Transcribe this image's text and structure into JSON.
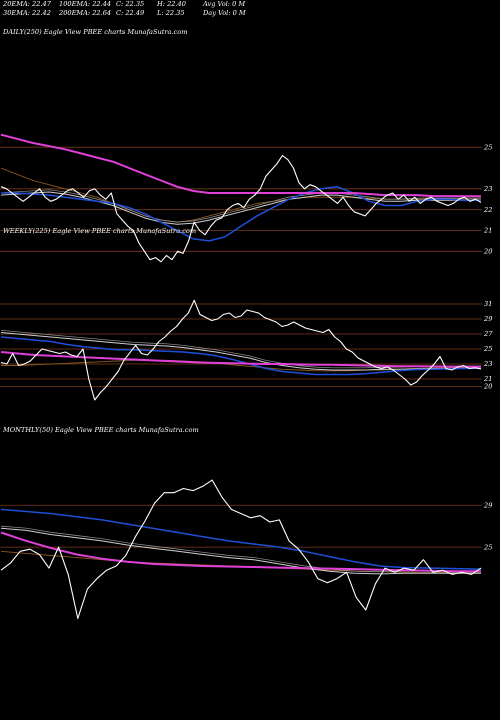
{
  "header": {
    "row1": [
      "20EMA: 22.47",
      "100EMA: 22.44",
      "C: 22.35",
      "H: 22.40",
      "Avg Vol: 0  M"
    ],
    "row2": [
      "30EMA: 22.42",
      "200EMA: 22.64",
      "C: 22.49",
      "L: 22.35",
      "Day Vol: 0  M"
    ]
  },
  "colors": {
    "background": "#000000",
    "price": "#ffffff",
    "ema_blue": "#1f4fd8",
    "ema_magenta": "#e040d8",
    "ema_brown": "#8b5a20",
    "ema_white_gray": "#cfcfcf",
    "gridline": "#7a3a1e"
  },
  "chart_data": [
    {
      "type": "line",
      "title": "DAILY(250) Eagle  View  PBEE charts MunafaSutra.com",
      "y_ticks": [
        25,
        23,
        22,
        21,
        20
      ],
      "ylim": [
        19.2,
        26.4
      ],
      "series": [
        {
          "key": "price",
          "values": [
            23.1,
            23.0,
            22.8,
            22.6,
            22.4,
            22.6,
            22.8,
            23.0,
            22.6,
            22.4,
            22.5,
            22.7,
            22.9,
            23.0,
            22.8,
            22.6,
            22.9,
            23.0,
            22.7,
            22.5,
            22.8,
            21.8,
            21.5,
            21.2,
            21.0,
            20.4,
            20.0,
            19.6,
            19.7,
            19.5,
            19.8,
            19.6,
            20.0,
            19.9,
            20.5,
            21.4,
            21.0,
            20.8,
            21.2,
            21.5,
            21.6,
            22.0,
            22.2,
            22.3,
            22.1,
            22.5,
            22.7,
            23.0,
            23.6,
            23.9,
            24.2,
            24.6,
            24.4,
            24.0,
            23.3,
            23.0,
            23.2,
            23.1,
            22.9,
            22.7,
            22.5,
            22.3,
            22.6,
            22.2,
            21.9,
            21.8,
            21.7,
            22.0,
            22.3,
            22.5,
            22.7,
            22.8,
            22.5,
            22.7,
            22.4,
            22.6,
            22.3,
            22.5,
            22.6,
            22.4,
            22.3,
            22.2,
            22.3,
            22.5,
            22.6,
            22.4,
            22.5,
            22.35
          ]
        },
        {
          "key": "ema_blue",
          "values": [
            22.8,
            22.8,
            22.75,
            22.7,
            22.6,
            22.5,
            22.4,
            22.3,
            22.1,
            21.8,
            21.4,
            21.0,
            20.6,
            20.5,
            20.7,
            21.2,
            21.7,
            22.1,
            22.5,
            22.8,
            23.0,
            23.1,
            22.8,
            22.4,
            22.2,
            22.2,
            22.4,
            22.5,
            22.5,
            22.45,
            22.45
          ]
        },
        {
          "key": "ema_white_gray",
          "values": [
            22.7,
            22.75,
            22.8,
            22.85,
            22.75,
            22.6,
            22.4,
            22.2,
            21.9,
            21.6,
            21.4,
            21.3,
            21.35,
            21.5,
            21.7,
            21.9,
            22.1,
            22.3,
            22.5,
            22.6,
            22.7,
            22.7,
            22.6,
            22.5,
            22.4,
            22.4,
            22.45,
            22.45,
            22.45,
            22.45,
            22.45
          ]
        },
        {
          "key": "ema_brown",
          "values": [
            24.0,
            23.7,
            23.4,
            23.2,
            23.0,
            22.8,
            22.6,
            22.3,
            22.0,
            21.7,
            21.5,
            21.4,
            21.5,
            21.7,
            21.9,
            22.1,
            22.3,
            22.4,
            22.5,
            22.6,
            22.6,
            22.6,
            22.6,
            22.55,
            22.5,
            22.5,
            22.5,
            22.5,
            22.5,
            22.5,
            22.5
          ]
        },
        {
          "key": "ema_magenta",
          "values": [
            25.6,
            25.4,
            25.2,
            25.05,
            24.9,
            24.7,
            24.5,
            24.3,
            24.0,
            23.7,
            23.4,
            23.1,
            22.9,
            22.8,
            22.8,
            22.8,
            22.8,
            22.8,
            22.8,
            22.8,
            22.8,
            22.8,
            22.8,
            22.75,
            22.7,
            22.7,
            22.7,
            22.65,
            22.65,
            22.64,
            22.64
          ]
        }
      ]
    },
    {
      "type": "line",
      "title": "WEEKLY(225) Eagle  View  PBEE charts MunafaSutra.com",
      "y_ticks": [
        31,
        29,
        27,
        25,
        23,
        21,
        20
      ],
      "ylim": [
        19,
        32.6
      ],
      "series": [
        {
          "key": "price",
          "values": [
            23.2,
            23.0,
            24.4,
            22.8,
            23.0,
            23.4,
            24.2,
            25.0,
            24.8,
            24.6,
            24.4,
            24.6,
            24.2,
            24.0,
            25.0,
            21.0,
            18.2,
            19.2,
            20.0,
            21.0,
            22.0,
            23.5,
            24.5,
            25.5,
            24.4,
            24.2,
            25.0,
            26.0,
            26.6,
            27.4,
            28.0,
            29.0,
            29.8,
            31.5,
            29.6,
            29.2,
            28.8,
            29.0,
            29.6,
            29.8,
            29.2,
            29.4,
            30.2,
            30.0,
            29.8,
            29.2,
            28.9,
            28.6,
            28.0,
            28.2,
            28.6,
            28.2,
            27.8,
            27.6,
            27.4,
            27.2,
            27.6,
            26.6,
            26.0,
            25.0,
            24.6,
            23.8,
            23.4,
            23.0,
            22.6,
            22.4,
            22.6,
            22.2,
            21.6,
            21.0,
            20.2,
            20.6,
            21.5,
            22.2,
            23.0,
            24.0,
            22.4,
            22.2,
            22.6,
            22.8,
            22.4,
            22.5,
            22.35
          ]
        },
        {
          "key": "ema_blue",
          "values": [
            26.6,
            26.4,
            26.2,
            26.0,
            25.6,
            25.3,
            25.1,
            24.9,
            24.9,
            24.8,
            24.7,
            24.6,
            24.4,
            24.1,
            23.6,
            23.0,
            22.4,
            22.0,
            21.8,
            21.6,
            21.6,
            21.6,
            21.7,
            21.9,
            22.1,
            22.25,
            22.3,
            22.35,
            22.4,
            22.42
          ]
        },
        {
          "key": "ema_white_gray",
          "values": [
            27.2,
            27.0,
            26.8,
            26.6,
            26.4,
            26.2,
            26.0,
            25.8,
            25.6,
            25.5,
            25.4,
            25.2,
            24.9,
            24.6,
            24.2,
            23.8,
            23.2,
            22.8,
            22.5,
            22.3,
            22.2,
            22.2,
            22.2,
            22.3,
            22.3,
            22.35,
            22.4,
            22.4,
            22.42,
            22.44
          ]
        },
        {
          "key": "ema_brown",
          "values": [
            22.8,
            22.8,
            22.9,
            23.0,
            23.1,
            23.2,
            23.3,
            23.4,
            23.5,
            23.5,
            23.5,
            23.4,
            23.3,
            23.1,
            22.9,
            22.7,
            22.5,
            22.3,
            22.2,
            22.1,
            22.1,
            22.1,
            22.2,
            22.2,
            22.3,
            22.4,
            22.45,
            22.5,
            22.5,
            22.5
          ]
        },
        {
          "key": "ema_magenta",
          "values": [
            24.6,
            24.4,
            24.2,
            24.1,
            24.0,
            23.9,
            23.8,
            23.7,
            23.6,
            23.5,
            23.4,
            23.3,
            23.2,
            23.15,
            23.1,
            23.05,
            23.0,
            23.0,
            22.95,
            22.9,
            22.9,
            22.85,
            22.8,
            22.75,
            22.7,
            22.7,
            22.68,
            22.66,
            22.65,
            22.64
          ]
        }
      ]
    },
    {
      "type": "line",
      "title": "MONTHLY(50) Eagle  View  PBEE charts MunafaSutra.com",
      "y_ticks": [
        29,
        25
      ],
      "ylim": [
        19,
        31.6
      ],
      "series": [
        {
          "key": "price",
          "values": [
            22.8,
            23.5,
            24.6,
            24.8,
            24.3,
            23.0,
            25.0,
            22.4,
            18.2,
            21.0,
            22.0,
            22.8,
            23.2,
            24.2,
            26.0,
            27.5,
            29.2,
            30.2,
            30.2,
            30.6,
            30.4,
            30.8,
            31.4,
            29.8,
            28.6,
            28.2,
            27.8,
            28.0,
            27.4,
            27.6,
            25.6,
            24.8,
            23.6,
            22.0,
            21.6,
            22.0,
            22.6,
            20.2,
            19.0,
            21.5,
            23.0,
            22.6,
            23.0,
            22.8,
            23.8,
            22.6,
            22.8,
            22.4,
            22.6,
            22.4,
            23.0
          ]
        },
        {
          "key": "ema_blue",
          "values": [
            28.6,
            28.4,
            28.2,
            27.9,
            27.6,
            27.2,
            26.8,
            26.4,
            26.0,
            25.6,
            25.3,
            25.0,
            24.6,
            24.1,
            23.6,
            23.2,
            23.05,
            23.0,
            22.95,
            22.9
          ]
        },
        {
          "key": "ema_white_gray",
          "values": [
            26.8,
            26.6,
            26.2,
            25.9,
            25.6,
            25.2,
            24.9,
            24.6,
            24.3,
            24.0,
            23.8,
            23.4,
            23.0,
            22.7,
            22.5,
            22.45,
            22.5,
            22.5,
            22.5,
            22.5
          ]
        },
        {
          "key": "ema_brown",
          "values": [
            24.6,
            24.4,
            24.2,
            24.0,
            23.8,
            23.6,
            23.5,
            23.4,
            23.3,
            23.2,
            23.1,
            23.0,
            22.9,
            22.8,
            22.7,
            22.65,
            22.6,
            22.6,
            22.6,
            22.6
          ]
        },
        {
          "key": "ema_magenta",
          "values": [
            26.4,
            25.6,
            24.9,
            24.3,
            23.9,
            23.6,
            23.4,
            23.3,
            23.2,
            23.15,
            23.1,
            23.05,
            23.0,
            22.95,
            22.9,
            22.85,
            22.8,
            22.75,
            22.7,
            22.7
          ]
        }
      ]
    }
  ]
}
